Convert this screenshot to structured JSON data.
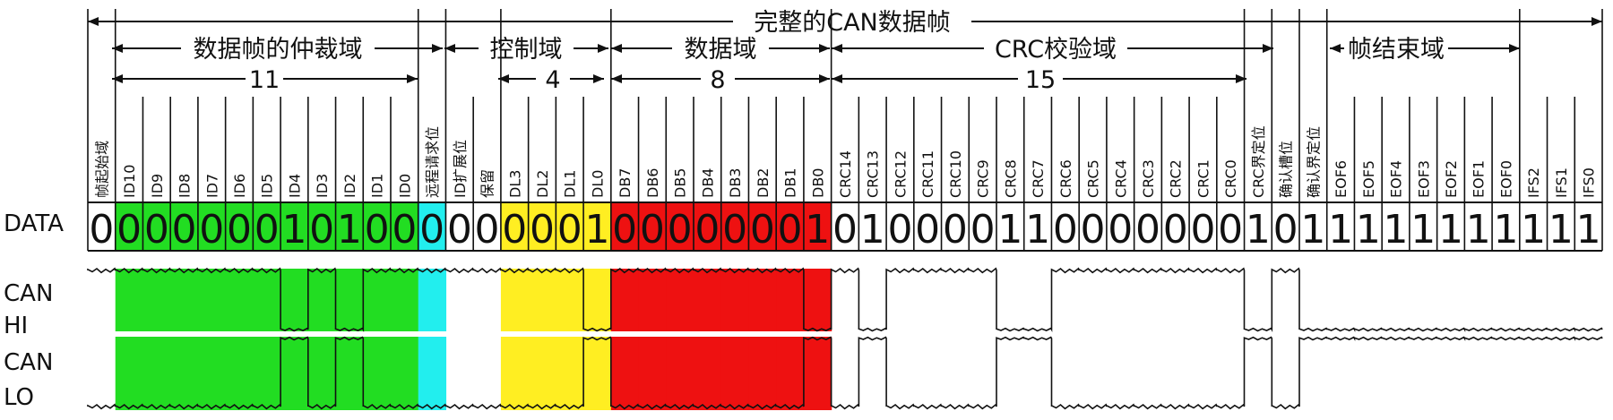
{
  "title": "完整的CAN数据帧",
  "segments": [
    {
      "label": "数据帧的仲裁域",
      "count": "11"
    },
    {
      "label": "控制域",
      "count": "4"
    },
    {
      "label": "数据域",
      "count": "8"
    },
    {
      "label": "CRC校验域",
      "count": "15"
    },
    {
      "label": "帧结束域",
      "count": ""
    }
  ],
  "row_labels": {
    "data": "DATA",
    "can_hi": [
      "CAN",
      "HI"
    ],
    "can_lo": [
      "CAN",
      "LO"
    ]
  },
  "fields": [
    {
      "name": "帧起始域",
      "bit": "0",
      "color": ""
    },
    {
      "name": "ID10",
      "bit": "0",
      "color": "#22dd22"
    },
    {
      "name": "ID9",
      "bit": "0",
      "color": "#22dd22"
    },
    {
      "name": "ID8",
      "bit": "0",
      "color": "#22dd22"
    },
    {
      "name": "ID7",
      "bit": "0",
      "color": "#22dd22"
    },
    {
      "name": "ID6",
      "bit": "0",
      "color": "#22dd22"
    },
    {
      "name": "ID5",
      "bit": "0",
      "color": "#22dd22"
    },
    {
      "name": "ID4",
      "bit": "1",
      "color": "#22dd22"
    },
    {
      "name": "ID3",
      "bit": "0",
      "color": "#22dd22"
    },
    {
      "name": "ID2",
      "bit": "1",
      "color": "#22dd22"
    },
    {
      "name": "ID1",
      "bit": "0",
      "color": "#22dd22"
    },
    {
      "name": "ID0",
      "bit": "0",
      "color": "#22dd22"
    },
    {
      "name": "远程请求位",
      "bit": "0",
      "color": "#22eeee"
    },
    {
      "name": "ID扩展位",
      "bit": "0",
      "color": ""
    },
    {
      "name": "保留",
      "bit": "0",
      "color": ""
    },
    {
      "name": "DL3",
      "bit": "0",
      "color": "#ffee22"
    },
    {
      "name": "DL2",
      "bit": "0",
      "color": "#ffee22"
    },
    {
      "name": "DL1",
      "bit": "0",
      "color": "#ffee22"
    },
    {
      "name": "DL0",
      "bit": "1",
      "color": "#ffee22"
    },
    {
      "name": "DB7",
      "bit": "0",
      "color": "#ee1111"
    },
    {
      "name": "DB6",
      "bit": "0",
      "color": "#ee1111"
    },
    {
      "name": "DB5",
      "bit": "0",
      "color": "#ee1111"
    },
    {
      "name": "DB4",
      "bit": "0",
      "color": "#ee1111"
    },
    {
      "name": "DB3",
      "bit": "0",
      "color": "#ee1111"
    },
    {
      "name": "DB2",
      "bit": "0",
      "color": "#ee1111"
    },
    {
      "name": "DB1",
      "bit": "0",
      "color": "#ee1111"
    },
    {
      "name": "DB0",
      "bit": "1",
      "color": "#ee1111"
    },
    {
      "name": "CRC14",
      "bit": "0",
      "color": ""
    },
    {
      "name": "CRC13",
      "bit": "1",
      "color": ""
    },
    {
      "name": "CRC12",
      "bit": "0",
      "color": ""
    },
    {
      "name": "CRC11",
      "bit": "0",
      "color": ""
    },
    {
      "name": "CRC10",
      "bit": "0",
      "color": ""
    },
    {
      "name": "CRC9",
      "bit": "0",
      "color": ""
    },
    {
      "name": "CRC8",
      "bit": "1",
      "color": ""
    },
    {
      "name": "CRC7",
      "bit": "1",
      "color": ""
    },
    {
      "name": "CRC6",
      "bit": "0",
      "color": ""
    },
    {
      "name": "CRC5",
      "bit": "0",
      "color": ""
    },
    {
      "name": "CRC4",
      "bit": "0",
      "color": ""
    },
    {
      "name": "CRC3",
      "bit": "0",
      "color": ""
    },
    {
      "name": "CRC2",
      "bit": "0",
      "color": ""
    },
    {
      "name": "CRC1",
      "bit": "0",
      "color": ""
    },
    {
      "name": "CRC0",
      "bit": "0",
      "color": ""
    },
    {
      "name": "CRC界定位",
      "bit": "1",
      "color": ""
    },
    {
      "name": "确认槽位",
      "bit": "0",
      "color": ""
    },
    {
      "name": "确认界定位",
      "bit": "1",
      "color": ""
    },
    {
      "name": "EOF6",
      "bit": "1",
      "color": ""
    },
    {
      "name": "EOF5",
      "bit": "1",
      "color": ""
    },
    {
      "name": "EOF4",
      "bit": "1",
      "color": ""
    },
    {
      "name": "EOF3",
      "bit": "1",
      "color": ""
    },
    {
      "name": "EOF2",
      "bit": "1",
      "color": ""
    },
    {
      "name": "EOF1",
      "bit": "1",
      "color": ""
    },
    {
      "name": "EOF0",
      "bit": "1",
      "color": ""
    },
    {
      "name": "IFS2",
      "bit": "1",
      "color": ""
    },
    {
      "name": "IFS1",
      "bit": "1",
      "color": ""
    },
    {
      "name": "IFS0",
      "bit": "1",
      "color": ""
    }
  ]
}
